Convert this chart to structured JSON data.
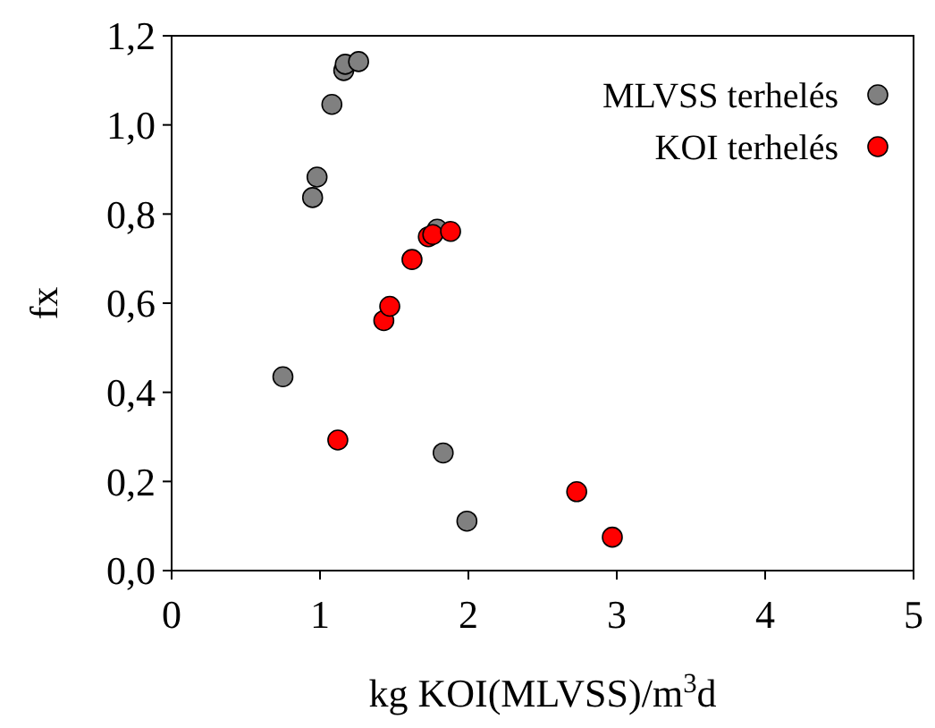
{
  "chart_data": {
    "type": "scatter",
    "xlabel": "kg KOI(MLVSS)/m$^{3}$d",
    "ylabel": "fx",
    "xlim": [
      0,
      5
    ],
    "ylim": [
      0,
      1.2
    ],
    "xticks": [
      0,
      1,
      2,
      3,
      4,
      5
    ],
    "yticks": [
      {
        "value": 0,
        "label": "0,0"
      },
      {
        "value": 0.2,
        "label": "0,2"
      },
      {
        "value": 0.4,
        "label": "0,4"
      },
      {
        "value": 0.6,
        "label": "0,6"
      },
      {
        "value": 0.8,
        "label": "0,8"
      },
      {
        "value": 1,
        "label": "1,0"
      },
      {
        "value": 1.2,
        "label": "1,2"
      }
    ],
    "grid": false,
    "legend": "top right",
    "marker": "circle",
    "series": [
      {
        "name": "MLVSS terhelés",
        "color": "#808080",
        "x": [
          0.75,
          0.95,
          0.98,
          1.08,
          1.16,
          1.17,
          1.26,
          1.79,
          1.83,
          1.99
        ],
        "values": [
          0.435,
          0.837,
          0.883,
          1.046,
          1.122,
          1.136,
          1.142,
          0.766,
          0.264,
          0.111
        ]
      },
      {
        "name": "KOI terhelés",
        "color": "#ff0000",
        "x": [
          1.12,
          1.43,
          1.47,
          1.62,
          1.73,
          1.76,
          1.88,
          2.73,
          2.97
        ],
        "values": [
          0.293,
          0.561,
          0.593,
          0.698,
          0.749,
          0.754,
          0.761,
          0.177,
          0.075
        ]
      }
    ]
  }
}
